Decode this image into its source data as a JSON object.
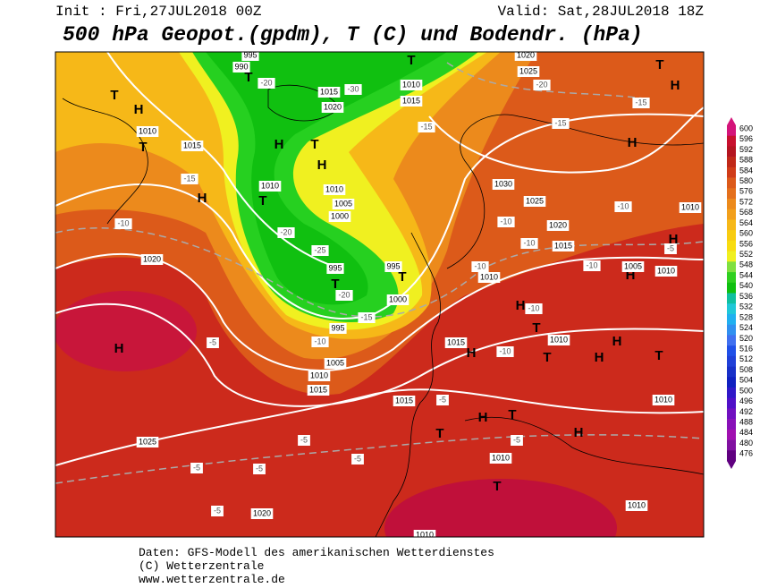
{
  "header": {
    "init": "Init : Fri,27JUL2018 00Z",
    "valid": "Valid: Sat,28JUL2018 18Z",
    "title": "500 hPa Geopot.(gpdm), T (C) und Bodendr. (hPa)"
  },
  "colorbar": {
    "levels": [
      600,
      596,
      592,
      588,
      584,
      580,
      576,
      572,
      568,
      564,
      560,
      556,
      552,
      548,
      544,
      540,
      536,
      532,
      528,
      524,
      520,
      516,
      512,
      508,
      504,
      500,
      496,
      492,
      488,
      484,
      480,
      476
    ],
    "colors": [
      "#d4147a",
      "#c8102e",
      "#b41420",
      "#c02818",
      "#d03c18",
      "#dc5a1a",
      "#e4701c",
      "#ec8a1c",
      "#f2a01c",
      "#f6b818",
      "#f8cc10",
      "#f8dc10",
      "#f0f020",
      "#80e040",
      "#30d020",
      "#10c010",
      "#10c0a0",
      "#20c8d8",
      "#20b0f0",
      "#3090f0",
      "#4070f0",
      "#2050e8",
      "#2040d8",
      "#1830c8",
      "#1020c0",
      "#3018c8",
      "#5010c8",
      "#7010c0",
      "#8810b8",
      "#a010b0",
      "#8010a0",
      "#600080"
    ]
  },
  "map_labels": [
    "T",
    "1010",
    "1015",
    "995",
    "990",
    "T",
    "-20",
    "1015",
    "-30",
    "1020",
    "H",
    "T",
    "1010",
    "T",
    "1015",
    "H",
    "T",
    "H",
    "-15",
    "H",
    "1010",
    "T",
    "1010",
    "1005",
    "1000",
    "-20",
    "-10",
    "-25",
    "995",
    "T",
    "-20",
    "995",
    "T",
    "1000",
    "-15",
    "995",
    "-10",
    "1005",
    "1010",
    "1015",
    "1020",
    "H",
    "-5",
    "1025",
    "-5",
    "-5",
    "-5",
    "-5",
    "-5",
    "1020",
    "1010",
    "1015",
    "-5",
    "T",
    "H",
    "T",
    "-5",
    "H",
    "1010",
    "T",
    "1010",
    "1010",
    "1015",
    "H",
    "-10",
    "T",
    "1010",
    "H",
    "T",
    "H",
    "T",
    "H",
    "-10",
    "1010",
    "-10",
    "H",
    "1005",
    "-10",
    "1015",
    "1020",
    "-10",
    "-10",
    "1030",
    "1025",
    "H",
    "H",
    "1010",
    "-5",
    "-10",
    "T",
    "H",
    "-15",
    "-15",
    "-20",
    "1025",
    "1020",
    "-15",
    "1010"
  ],
  "footer": [
    "Daten: GFS-Modell des amerikanischen Wetterdienstes",
    "(C) Wetterzentrale",
    "www.wetterzentrale.de"
  ]
}
